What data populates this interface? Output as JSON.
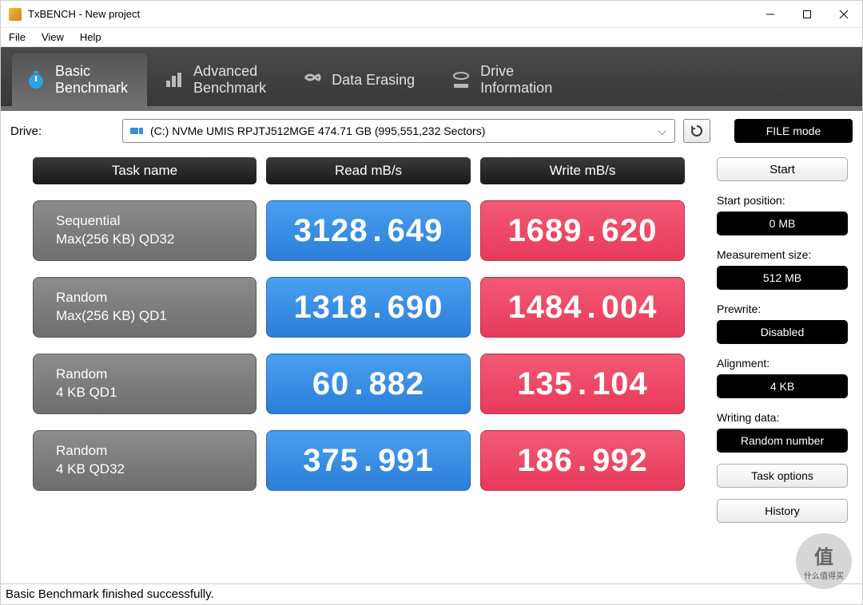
{
  "window": {
    "title": "TxBENCH - New project"
  },
  "menubar": [
    "File",
    "View",
    "Help"
  ],
  "tabs": [
    {
      "label_line1": "Basic",
      "label_line2": "Benchmark",
      "icon": "stopwatch",
      "active": true
    },
    {
      "label_line1": "Advanced",
      "label_line2": "Benchmark",
      "icon": "bars",
      "active": false
    },
    {
      "label_line1": "Data Erasing",
      "label_line2": "",
      "icon": "erase",
      "active": false
    },
    {
      "label_line1": "Drive",
      "label_line2": "Information",
      "icon": "drive",
      "active": false
    }
  ],
  "drive": {
    "label": "Drive:",
    "selected": "(C:) NVMe UMIS RPJTJ512MGE  474.71 GB (995,551,232 Sectors)",
    "file_mode_label": "FILE mode"
  },
  "table": {
    "header": {
      "task": "Task name",
      "read": "Read mB/s",
      "write": "Write mB/s"
    },
    "rows": [
      {
        "task_l1": "Sequential",
        "task_l2": "Max(256 KB) QD32",
        "read_int": "3128",
        "read_frac": "649",
        "write_int": "1689",
        "write_frac": "620"
      },
      {
        "task_l1": "Random",
        "task_l2": "Max(256 KB) QD1",
        "read_int": "1318",
        "read_frac": "690",
        "write_int": "1484",
        "write_frac": "004"
      },
      {
        "task_l1": "Random",
        "task_l2": "4 KB QD1",
        "read_int": "60",
        "read_frac": "882",
        "write_int": "135",
        "write_frac": "104"
      },
      {
        "task_l1": "Random",
        "task_l2": "4 KB QD32",
        "read_int": "375",
        "read_frac": "991",
        "write_int": "186",
        "write_frac": "992"
      }
    ],
    "colors": {
      "read_bg": "#3d8ee6",
      "write_bg": "#ed4a66",
      "task_bg": "#7a7a7a",
      "header_bg": "#222222"
    }
  },
  "sidebar": {
    "start_label": "Start",
    "sections": {
      "start_position": {
        "title": "Start position:",
        "value": "0 MB"
      },
      "measurement_size": {
        "title": "Measurement size:",
        "value": "512 MB"
      },
      "prewrite": {
        "title": "Prewrite:",
        "value": "Disabled"
      },
      "alignment": {
        "title": "Alignment:",
        "value": "4 KB"
      },
      "writing_data": {
        "title": "Writing data:",
        "value": "Random number"
      }
    },
    "task_options_label": "Task options",
    "history_label": "History"
  },
  "statusbar": {
    "text": "Basic Benchmark finished successfully."
  },
  "watermark": {
    "glyph": "值",
    "text": "什么值得买"
  }
}
